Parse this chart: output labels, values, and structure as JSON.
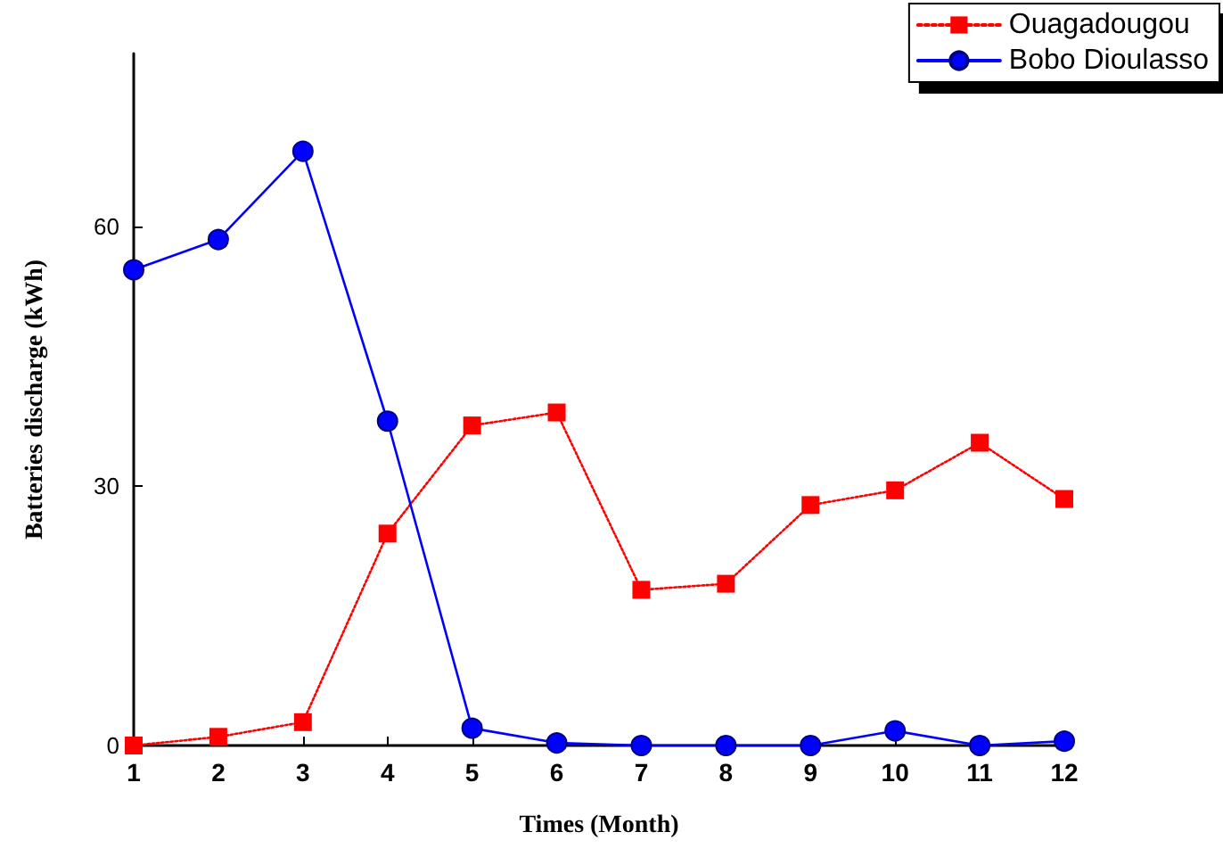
{
  "chart_data": {
    "type": "line",
    "xlabel": "Times (Month)",
    "ylabel": "Batteries discharge (kWh)",
    "x": [
      1,
      2,
      3,
      4,
      5,
      6,
      7,
      8,
      9,
      10,
      11,
      12
    ],
    "series": [
      {
        "name": "Ouagadougou",
        "color": "#ff0000",
        "marker": "square",
        "line_style": "dotted",
        "values": [
          0,
          1,
          2.7,
          24.5,
          37,
          38.5,
          18,
          18.7,
          27.8,
          29.5,
          35,
          28.5
        ]
      },
      {
        "name": "Bobo Dioulasso",
        "color": "#0000ff",
        "marker": "circle",
        "line_style": "solid",
        "values": [
          55,
          58.5,
          68.7,
          37.5,
          2,
          0.3,
          0,
          0,
          0,
          1.7,
          0,
          0.5
        ]
      }
    ],
    "xlim": [
      1,
      12
    ],
    "xticks": [
      1,
      2,
      3,
      4,
      5,
      6,
      7,
      8,
      9,
      10,
      11,
      12
    ],
    "ylim": [
      0,
      80
    ],
    "yticks": [
      0,
      30,
      60
    ],
    "grid": false,
    "legend": "top right"
  }
}
